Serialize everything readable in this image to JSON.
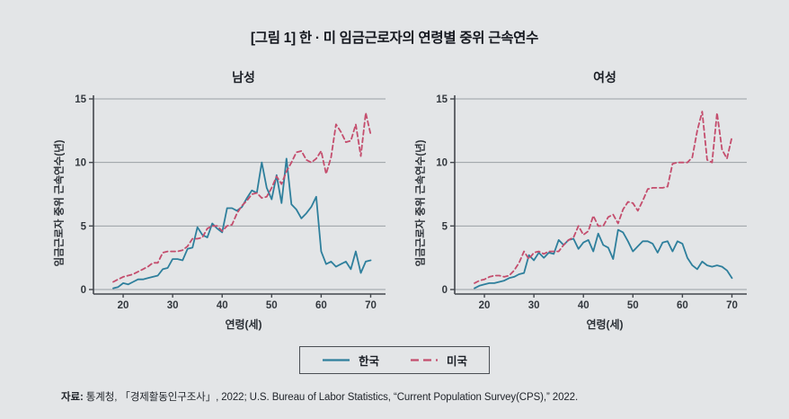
{
  "title": "[그림 1] 한 · 미 임금근로자의 연령별 중위 근속연수",
  "source": {
    "label": "자료:",
    "text": " 통계청, 「경제활동인구조사」, 2022; U.S. Bureau of Labor Statistics, “Current Population Survey(CPS),” 2022."
  },
  "legend": {
    "items": [
      {
        "label": "한국",
        "color_key": "korea",
        "style": "solid"
      },
      {
        "label": "미국",
        "color_key": "us",
        "style": "dashed"
      }
    ]
  },
  "colors": {
    "korea": "#2e7f9c",
    "us": "#c44d6d",
    "grid": "#9aa0a5",
    "axis": "#43474d",
    "background": "#e3e5e7",
    "title_text": "#15181f"
  },
  "ages": [
    18,
    19,
    20,
    21,
    22,
    23,
    24,
    25,
    26,
    27,
    28,
    29,
    30,
    31,
    32,
    33,
    34,
    35,
    36,
    37,
    38,
    39,
    40,
    41,
    42,
    43,
    44,
    45,
    46,
    47,
    48,
    49,
    50,
    51,
    52,
    53,
    54,
    55,
    56,
    57,
    58,
    59,
    60,
    61,
    62,
    63,
    64,
    65,
    66,
    67,
    68,
    69,
    70
  ],
  "chart_data": [
    {
      "type": "line",
      "title": "남성",
      "xlabel": "연령(세)",
      "ylabel": "임금근로자 중위 근속연수(년)",
      "xlim": [
        14,
        73
      ],
      "ylim": [
        0,
        15
      ],
      "xticks": [
        20,
        30,
        40,
        50,
        60,
        70
      ],
      "yticks": [
        0,
        5,
        10,
        15
      ],
      "grid": "horizontal",
      "series": [
        {
          "name": "한국",
          "color_key": "korea",
          "dash": "solid",
          "values": [
            0.1,
            0.2,
            0.5,
            0.4,
            0.6,
            0.8,
            0.8,
            0.9,
            1.0,
            1.1,
            1.6,
            1.7,
            2.4,
            2.4,
            2.3,
            3.2,
            3.3,
            4.9,
            4.3,
            4.1,
            5.2,
            4.8,
            4.5,
            6.4,
            6.4,
            6.2,
            6.5,
            7.2,
            7.8,
            7.6,
            10.0,
            8.0,
            7.1,
            9.0,
            6.8,
            10.3,
            6.7,
            6.3,
            5.6,
            6.0,
            6.5,
            7.3,
            3.0,
            2.0,
            2.2,
            1.8,
            2.0,
            2.2,
            1.6,
            3.0,
            1.3,
            2.2,
            2.3
          ]
        },
        {
          "name": "미국",
          "color_key": "us",
          "dash": "dashed",
          "values": [
            0.6,
            0.8,
            1.0,
            1.1,
            1.2,
            1.4,
            1.6,
            1.8,
            2.1,
            2.1,
            2.9,
            3.0,
            3.0,
            3.0,
            3.1,
            3.4,
            4.0,
            4.0,
            4.1,
            4.8,
            5.0,
            5.0,
            4.6,
            5.0,
            5.1,
            6.0,
            6.6,
            7.0,
            7.5,
            7.6,
            7.2,
            7.3,
            8.0,
            8.9,
            8.3,
            9.3,
            10.0,
            10.8,
            10.9,
            10.2,
            10.0,
            10.3,
            10.9,
            9.1,
            10.4,
            13.0,
            12.4,
            11.6,
            11.7,
            13.0,
            10.5,
            13.9,
            12.2
          ]
        }
      ]
    },
    {
      "type": "line",
      "title": "여성",
      "xlabel": "연령(세)",
      "ylabel": "임금근로자 중위 근속연수(년)",
      "xlim": [
        14,
        73
      ],
      "ylim": [
        0,
        15
      ],
      "xticks": [
        20,
        30,
        40,
        50,
        60,
        70
      ],
      "yticks": [
        0,
        5,
        10,
        15
      ],
      "grid": "horizontal",
      "series": [
        {
          "name": "한국",
          "color_key": "korea",
          "dash": "solid",
          "values": [
            0.1,
            0.3,
            0.4,
            0.5,
            0.5,
            0.6,
            0.7,
            0.9,
            1.0,
            1.2,
            1.3,
            2.7,
            2.3,
            2.9,
            2.5,
            2.9,
            2.8,
            3.9,
            3.5,
            3.9,
            4.0,
            3.2,
            3.7,
            3.9,
            3.0,
            4.4,
            3.5,
            3.3,
            2.4,
            4.7,
            4.5,
            3.8,
            3.0,
            3.4,
            3.8,
            3.8,
            3.6,
            2.9,
            3.7,
            3.8,
            3.0,
            3.8,
            3.6,
            2.5,
            1.9,
            1.6,
            2.2,
            1.9,
            1.8,
            1.9,
            1.8,
            1.5,
            0.9
          ]
        },
        {
          "name": "미국",
          "color_key": "us",
          "dash": "dashed",
          "values": [
            0.5,
            0.7,
            0.8,
            1.0,
            1.1,
            1.1,
            1.0,
            1.1,
            1.5,
            2.1,
            3.0,
            2.4,
            2.9,
            3.0,
            2.8,
            3.0,
            3.0,
            3.0,
            3.5,
            3.9,
            4.1,
            5.0,
            4.3,
            4.6,
            5.8,
            5.0,
            5.0,
            5.7,
            5.9,
            5.2,
            6.3,
            6.9,
            6.8,
            6.2,
            7.0,
            7.9,
            8.0,
            8.0,
            8.0,
            8.1,
            9.9,
            10.0,
            10.0,
            10.0,
            10.4,
            12.5,
            14.0,
            10.2,
            10.0,
            13.9,
            11.0,
            10.3,
            12.0
          ]
        }
      ]
    }
  ]
}
